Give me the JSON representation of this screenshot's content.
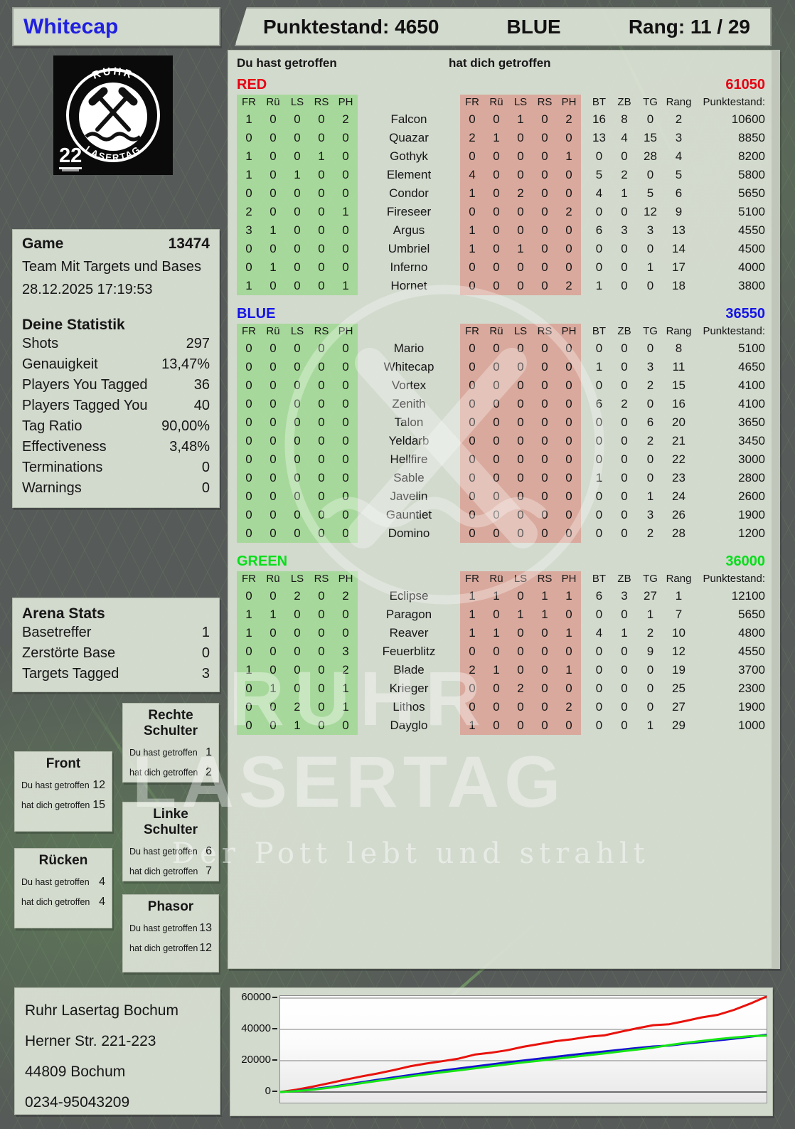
{
  "player": {
    "name": "Whitecap",
    "score_label": "Punktestand: 4650",
    "team": "BLUE",
    "rank_label": "Rang: 11 / 29"
  },
  "logo": {
    "top_text": "RUHR",
    "bottom_text": "LASERTAG",
    "badge": "22"
  },
  "game": {
    "label": "Game",
    "number": "13474",
    "mode": "Team Mit Targets und Bases",
    "datetime": "28.12.2025 17:19:53"
  },
  "stats": {
    "title": "Deine Statistik",
    "rows": [
      {
        "label": "Shots",
        "value": "297"
      },
      {
        "label": "Genauigkeit",
        "value": "13,47%"
      },
      {
        "label": "Players You Tagged",
        "value": "36"
      },
      {
        "label": "Players Tagged You",
        "value": "40"
      },
      {
        "label": "Tag Ratio",
        "value": "90,00%"
      },
      {
        "label": "Effectiveness",
        "value": "3,48%"
      },
      {
        "label": "Terminations",
        "value": "0"
      },
      {
        "label": "Warnings",
        "value": "0"
      }
    ]
  },
  "arena": {
    "title": "Arena Stats",
    "rows": [
      {
        "label": "Basetreffer",
        "value": "1"
      },
      {
        "label": "Zerstörte Base",
        "value": "0"
      },
      {
        "label": "Targets Tagged",
        "value": "3"
      }
    ]
  },
  "hit_labels": {
    "you": "Du hast getroffen",
    "them": "hat dich getroffen"
  },
  "hit_zones": [
    {
      "title": "Rechte Schulter",
      "hit": "1",
      "got": "2"
    },
    {
      "title": "Front",
      "hit": "12",
      "got": "15"
    },
    {
      "title": "Linke Schulter",
      "hit": "6",
      "got": "7"
    },
    {
      "title": "Rücken",
      "hit": "4",
      "got": "4"
    },
    {
      "title": "Phasor",
      "hit": "13",
      "got": "12"
    }
  ],
  "tables": {
    "you_hit_label": "Du hast getroffen",
    "hit_you_label": "hat dich getroffen",
    "zone_cols": [
      "FR",
      "Rü",
      "LS",
      "RS",
      "PH"
    ],
    "stat_cols": [
      "BT",
      "ZB",
      "TG",
      "Rang",
      "Punktestand:"
    ],
    "teams": [
      {
        "name": "RED",
        "color": "#e60012",
        "score": "61050",
        "rows": [
          {
            "you": [
              1,
              0,
              0,
              0,
              2
            ],
            "player": "Falcon",
            "them": [
              0,
              0,
              1,
              0,
              2
            ],
            "bt": 16,
            "zb": 8,
            "tg": 0,
            "rang": 2,
            "points": 10600
          },
          {
            "you": [
              0,
              0,
              0,
              0,
              0
            ],
            "player": "Quazar",
            "them": [
              2,
              1,
              0,
              0,
              0
            ],
            "bt": 13,
            "zb": 4,
            "tg": 15,
            "rang": 3,
            "points": 8850
          },
          {
            "you": [
              1,
              0,
              0,
              1,
              0
            ],
            "player": "Gothyk",
            "them": [
              0,
              0,
              0,
              0,
              1
            ],
            "bt": 0,
            "zb": 0,
            "tg": 28,
            "rang": 4,
            "points": 8200
          },
          {
            "you": [
              1,
              0,
              1,
              0,
              0
            ],
            "player": "Element",
            "them": [
              4,
              0,
              0,
              0,
              0
            ],
            "bt": 5,
            "zb": 2,
            "tg": 0,
            "rang": 5,
            "points": 5800
          },
          {
            "you": [
              0,
              0,
              0,
              0,
              0
            ],
            "player": "Condor",
            "them": [
              1,
              0,
              2,
              0,
              0
            ],
            "bt": 4,
            "zb": 1,
            "tg": 5,
            "rang": 6,
            "points": 5650
          },
          {
            "you": [
              2,
              0,
              0,
              0,
              1
            ],
            "player": "Fireseer",
            "them": [
              0,
              0,
              0,
              0,
              2
            ],
            "bt": 0,
            "zb": 0,
            "tg": 12,
            "rang": 9,
            "points": 5100
          },
          {
            "you": [
              3,
              1,
              0,
              0,
              0
            ],
            "player": "Argus",
            "them": [
              1,
              0,
              0,
              0,
              0
            ],
            "bt": 6,
            "zb": 3,
            "tg": 3,
            "rang": 13,
            "points": 4550
          },
          {
            "you": [
              0,
              0,
              0,
              0,
              0
            ],
            "player": "Umbriel",
            "them": [
              1,
              0,
              1,
              0,
              0
            ],
            "bt": 0,
            "zb": 0,
            "tg": 0,
            "rang": 14,
            "points": 4500
          },
          {
            "you": [
              0,
              1,
              0,
              0,
              0
            ],
            "player": "Inferno",
            "them": [
              0,
              0,
              0,
              0,
              0
            ],
            "bt": 0,
            "zb": 0,
            "tg": 1,
            "rang": 17,
            "points": 4000
          },
          {
            "you": [
              1,
              0,
              0,
              0,
              1
            ],
            "player": "Hornet",
            "them": [
              0,
              0,
              0,
              0,
              2
            ],
            "bt": 1,
            "zb": 0,
            "tg": 0,
            "rang": 18,
            "points": 3800
          }
        ]
      },
      {
        "name": "BLUE",
        "color": "#1414e6",
        "score": "36550",
        "rows": [
          {
            "you": [
              0,
              0,
              0,
              0,
              0
            ],
            "player": "Mario",
            "them": [
              0,
              0,
              0,
              0,
              0
            ],
            "bt": 0,
            "zb": 0,
            "tg": 0,
            "rang": 8,
            "points": 5100
          },
          {
            "you": [
              0,
              0,
              0,
              0,
              0
            ],
            "player": "Whitecap",
            "them": [
              0,
              0,
              0,
              0,
              0
            ],
            "bt": 1,
            "zb": 0,
            "tg": 3,
            "rang": 11,
            "points": 4650
          },
          {
            "you": [
              0,
              0,
              0,
              0,
              0
            ],
            "player": "Vortex",
            "them": [
              0,
              0,
              0,
              0,
              0
            ],
            "bt": 0,
            "zb": 0,
            "tg": 2,
            "rang": 15,
            "points": 4100
          },
          {
            "you": [
              0,
              0,
              0,
              0,
              0
            ],
            "player": "Zenith",
            "them": [
              0,
              0,
              0,
              0,
              0
            ],
            "bt": 6,
            "zb": 2,
            "tg": 0,
            "rang": 16,
            "points": 4100
          },
          {
            "you": [
              0,
              0,
              0,
              0,
              0
            ],
            "player": "Talon",
            "them": [
              0,
              0,
              0,
              0,
              0
            ],
            "bt": 0,
            "zb": 0,
            "tg": 6,
            "rang": 20,
            "points": 3650
          },
          {
            "you": [
              0,
              0,
              0,
              0,
              0
            ],
            "player": "Yeldarb",
            "them": [
              0,
              0,
              0,
              0,
              0
            ],
            "bt": 0,
            "zb": 0,
            "tg": 2,
            "rang": 21,
            "points": 3450
          },
          {
            "you": [
              0,
              0,
              0,
              0,
              0
            ],
            "player": "Hellfire",
            "them": [
              0,
              0,
              0,
              0,
              0
            ],
            "bt": 0,
            "zb": 0,
            "tg": 0,
            "rang": 22,
            "points": 3000
          },
          {
            "you": [
              0,
              0,
              0,
              0,
              0
            ],
            "player": "Sable",
            "them": [
              0,
              0,
              0,
              0,
              0
            ],
            "bt": 1,
            "zb": 0,
            "tg": 0,
            "rang": 23,
            "points": 2800
          },
          {
            "you": [
              0,
              0,
              0,
              0,
              0
            ],
            "player": "Javelin",
            "them": [
              0,
              0,
              0,
              0,
              0
            ],
            "bt": 0,
            "zb": 0,
            "tg": 1,
            "rang": 24,
            "points": 2600
          },
          {
            "you": [
              0,
              0,
              0,
              0,
              0
            ],
            "player": "Gauntlet",
            "them": [
              0,
              0,
              0,
              0,
              0
            ],
            "bt": 0,
            "zb": 0,
            "tg": 3,
            "rang": 26,
            "points": 1900
          },
          {
            "you": [
              0,
              0,
              0,
              0,
              0
            ],
            "player": "Domino",
            "them": [
              0,
              0,
              0,
              0,
              0
            ],
            "bt": 0,
            "zb": 0,
            "tg": 2,
            "rang": 28,
            "points": 1200
          }
        ]
      },
      {
        "name": "GREEN",
        "color": "#06df19",
        "score": "36000",
        "rows": [
          {
            "you": [
              0,
              0,
              2,
              0,
              2
            ],
            "player": "Eclipse",
            "them": [
              1,
              1,
              0,
              1,
              1
            ],
            "bt": 6,
            "zb": 3,
            "tg": 27,
            "rang": 1,
            "points": 12100
          },
          {
            "you": [
              1,
              1,
              0,
              0,
              0
            ],
            "player": "Paragon",
            "them": [
              1,
              0,
              1,
              1,
              0
            ],
            "bt": 0,
            "zb": 0,
            "tg": 1,
            "rang": 7,
            "points": 5650
          },
          {
            "you": [
              1,
              0,
              0,
              0,
              0
            ],
            "player": "Reaver",
            "them": [
              1,
              1,
              0,
              0,
              1
            ],
            "bt": 4,
            "zb": 1,
            "tg": 2,
            "rang": 10,
            "points": 4800
          },
          {
            "you": [
              0,
              0,
              0,
              0,
              3
            ],
            "player": "Feuerblitz",
            "them": [
              0,
              0,
              0,
              0,
              0
            ],
            "bt": 0,
            "zb": 0,
            "tg": 9,
            "rang": 12,
            "points": 4550
          },
          {
            "you": [
              1,
              0,
              0,
              0,
              2
            ],
            "player": "Blade",
            "them": [
              2,
              1,
              0,
              0,
              1
            ],
            "bt": 0,
            "zb": 0,
            "tg": 0,
            "rang": 19,
            "points": 3700
          },
          {
            "you": [
              0,
              1,
              0,
              0,
              1
            ],
            "player": "Krieger",
            "them": [
              0,
              0,
              2,
              0,
              0
            ],
            "bt": 0,
            "zb": 0,
            "tg": 0,
            "rang": 25,
            "points": 2300
          },
          {
            "you": [
              0,
              0,
              2,
              0,
              1
            ],
            "player": "Lithos",
            "them": [
              0,
              0,
              0,
              0,
              2
            ],
            "bt": 0,
            "zb": 0,
            "tg": 0,
            "rang": 27,
            "points": 1900
          },
          {
            "you": [
              0,
              0,
              1,
              0,
              0
            ],
            "player": "Dayglo",
            "them": [
              1,
              0,
              0,
              0,
              0
            ],
            "bt": 0,
            "zb": 0,
            "tg": 1,
            "rang": 29,
            "points": 1000
          }
        ]
      }
    ]
  },
  "watermark": {
    "line1": "RUHR",
    "line2": "LASERTAG",
    "tagline": "Der Pott lebt und strahlt"
  },
  "address": {
    "lines": [
      "Ruhr Lasertag Bochum",
      "Herner Str. 221-223",
      "44809 Bochum",
      "0234-95043209"
    ]
  },
  "chart_data": {
    "type": "line",
    "title": "",
    "xlabel": "",
    "ylabel": "",
    "ylim": [
      0,
      65000
    ],
    "yticks": [
      0,
      20000,
      40000,
      60000
    ],
    "grid": true,
    "legend": "none",
    "series": [
      {
        "name": "RED",
        "color": "#e8120c",
        "values": [
          0,
          1500,
          3400,
          5600,
          7800,
          9900,
          11800,
          14000,
          16400,
          18200,
          19700,
          21300,
          23900,
          25100,
          26700,
          28900,
          30700,
          32500,
          33700,
          35300,
          36200,
          38500,
          40700,
          42700,
          43300,
          45400,
          47700,
          49300,
          52500,
          56500,
          61050
        ]
      },
      {
        "name": "BLUE",
        "color": "#1512d0",
        "values": [
          0,
          700,
          1800,
          3100,
          4600,
          6200,
          7800,
          9300,
          10800,
          12300,
          13700,
          15000,
          16300,
          17600,
          18900,
          20100,
          21300,
          22500,
          23700,
          24800,
          25900,
          27000,
          28100,
          29100,
          29700,
          30900,
          31900,
          33000,
          34100,
          35300,
          36550
        ]
      },
      {
        "name": "GREEN",
        "color": "#17e417",
        "values": [
          0,
          600,
          1500,
          2700,
          4100,
          5600,
          7100,
          8500,
          9900,
          11300,
          12600,
          13800,
          15100,
          16400,
          17700,
          18900,
          20000,
          21200,
          22400,
          23500,
          24700,
          25900,
          27100,
          28300,
          30000,
          31400,
          32600,
          33800,
          34800,
          35700,
          36000
        ]
      }
    ]
  }
}
